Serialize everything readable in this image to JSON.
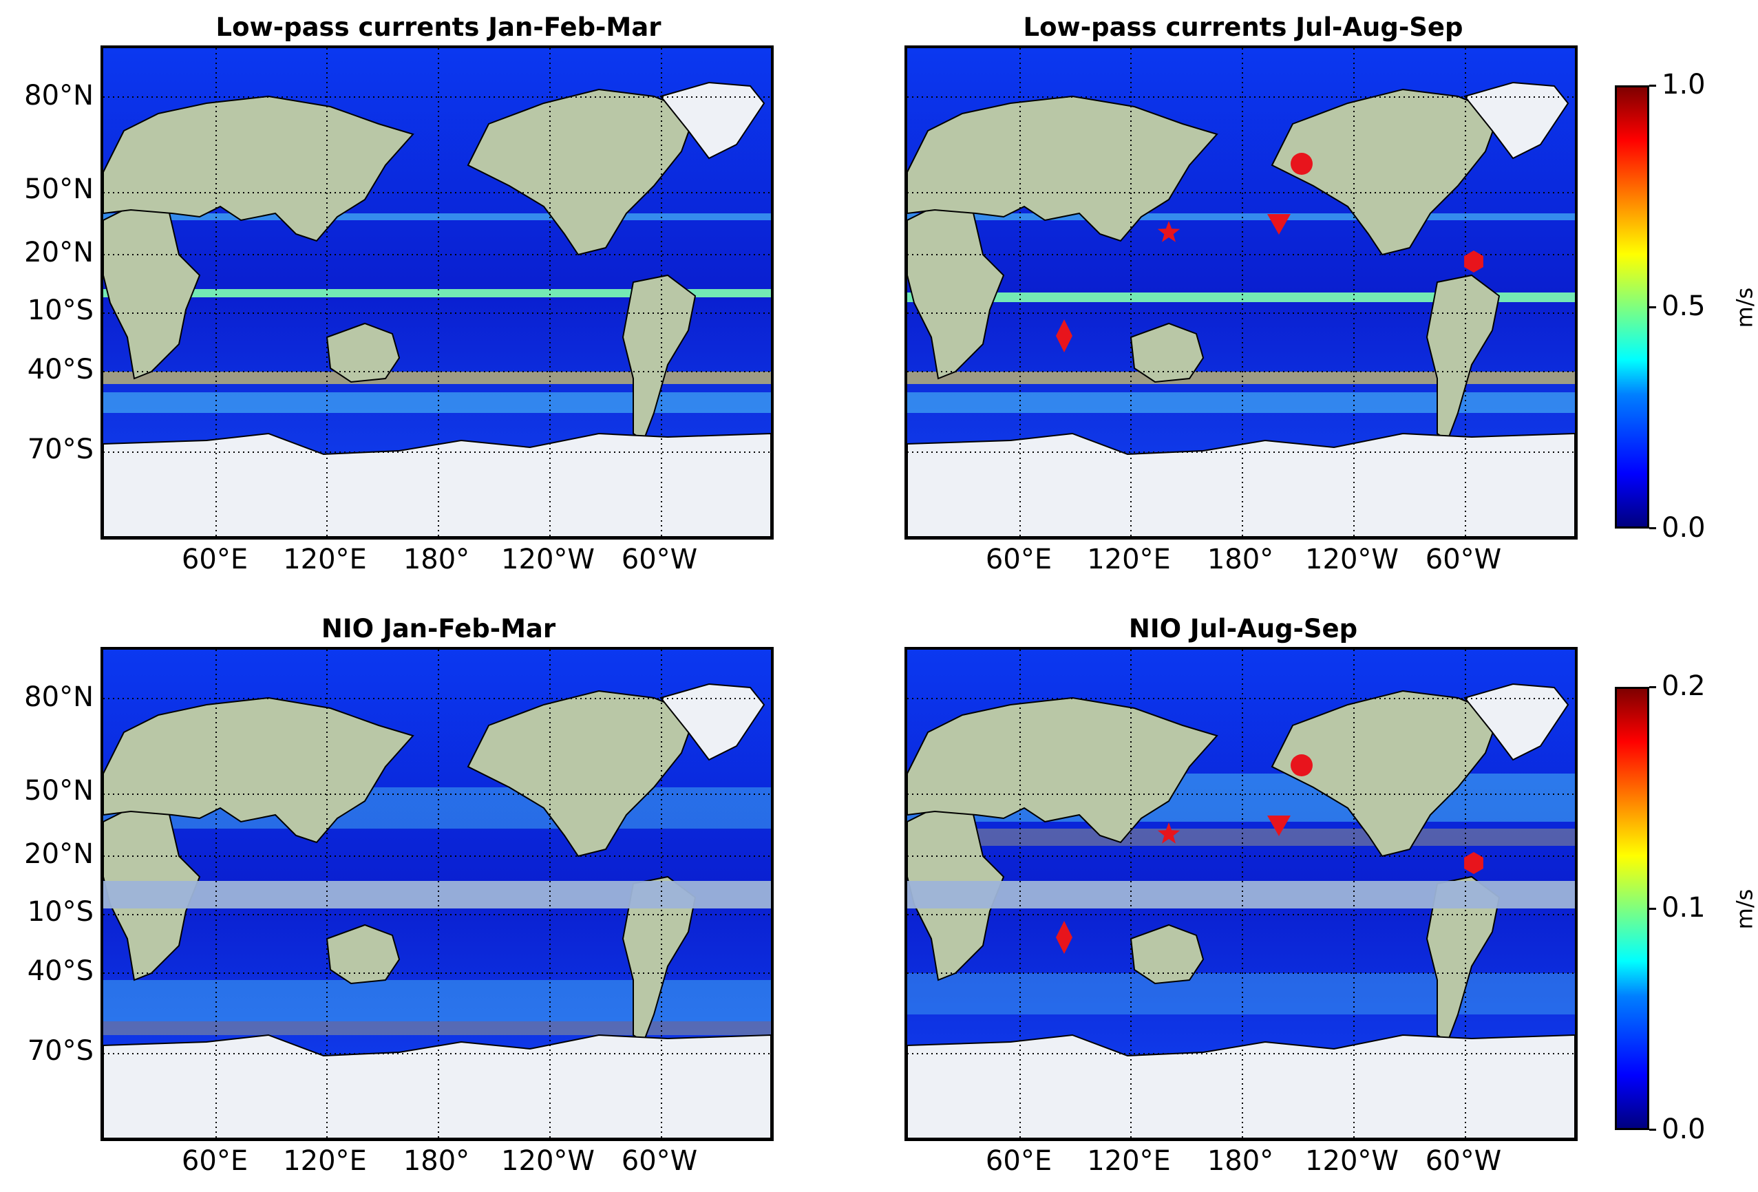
{
  "panels": [
    {
      "title": "Low-pass currents Jan-Feb-Mar",
      "field": "low-pass currents",
      "season": "Jan-Feb-Mar",
      "markers_shown": false,
      "masked_band": false
    },
    {
      "title": "Low-pass currents Jul-Aug-Sep",
      "field": "low-pass currents",
      "season": "Jul-Aug-Sep",
      "markers_shown": true,
      "masked_band": false
    },
    {
      "title": "NIO Jan-Feb-Mar",
      "field": "NIO",
      "season": "Jan-Feb-Mar",
      "markers_shown": false,
      "masked_band": true
    },
    {
      "title": "NIO Jul-Aug-Sep",
      "field": "NIO",
      "season": "Jul-Aug-Sep",
      "markers_shown": true,
      "masked_band": true
    }
  ],
  "lat_labels": [
    "80°N",
    "50°N",
    "20°N",
    "10°S",
    "40°S",
    "70°S"
  ],
  "lon_labels": [
    "60°E",
    "120°E",
    "180°",
    "120°W",
    "60°W"
  ],
  "colorbars": [
    {
      "min_label": "0.0",
      "mid_label": "0.5",
      "max_label": "1.0",
      "unit": "m/s",
      "min": 0.0,
      "max": 1.0
    },
    {
      "min_label": "0.0",
      "mid_label": "0.1",
      "max_label": "0.2",
      "unit": "m/s",
      "min": 0.0,
      "max": 0.2
    }
  ],
  "colormap": "jet",
  "markers": [
    {
      "shape": "circle",
      "color": "#e8141c"
    },
    {
      "shape": "star",
      "color": "#e8141c"
    },
    {
      "shape": "triangle-down",
      "color": "#e8141c"
    },
    {
      "shape": "hexagon",
      "color": "#e8141c"
    },
    {
      "shape": "diamond",
      "color": "#e8141c"
    }
  ],
  "colors": {
    "ocean_low": "#0a1fd0",
    "land": "#b9c7a6",
    "ice": "#eef1f6",
    "mask": "#9db4d8",
    "marker": "#e8141c"
  }
}
